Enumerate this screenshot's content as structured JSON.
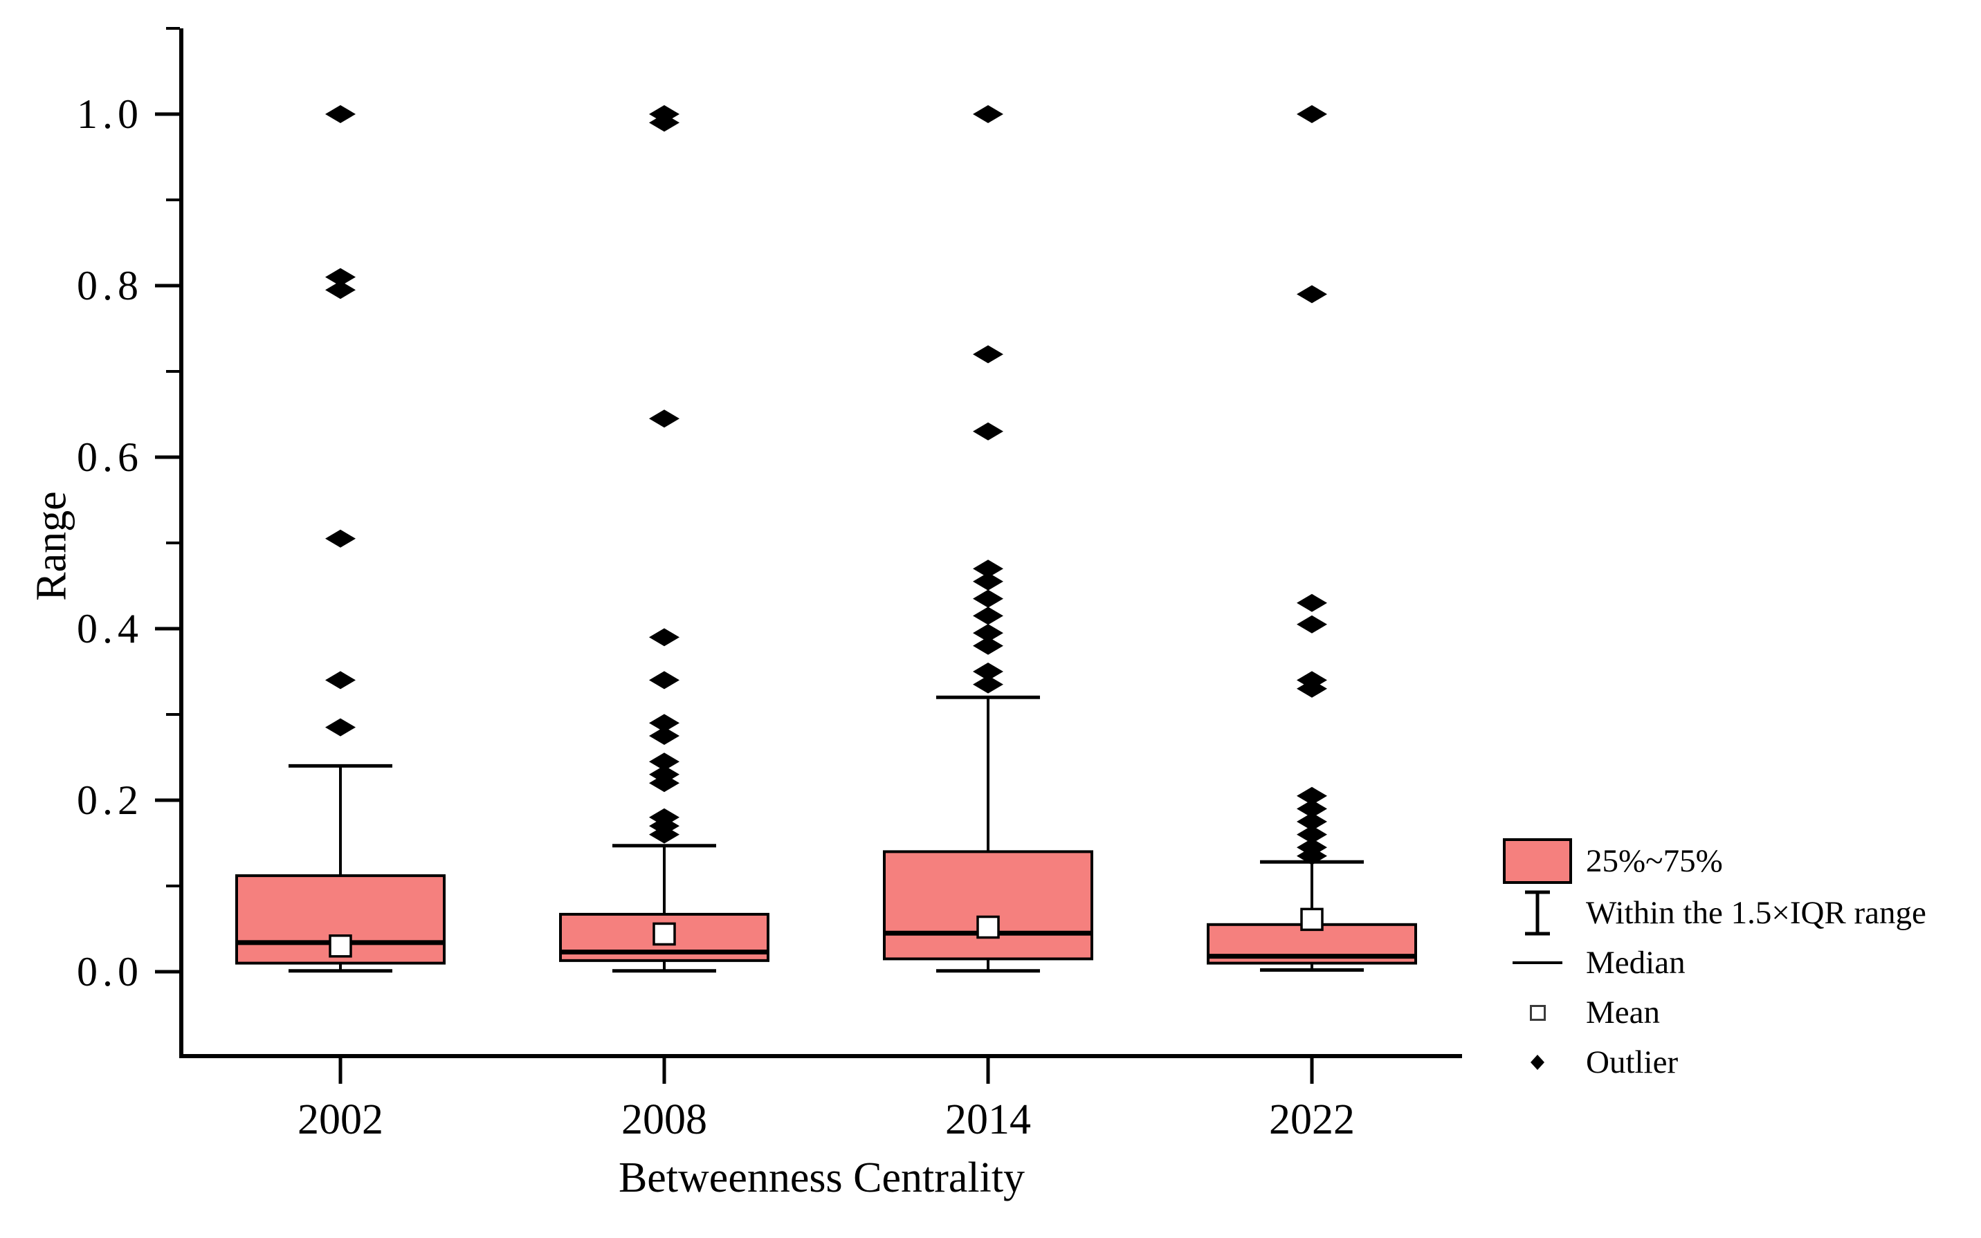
{
  "figure": {
    "background": "#ffffff",
    "ink_color": "#000000"
  },
  "chart_data": {
    "type": "box",
    "title": "",
    "xlabel": "Betweenness Centrality",
    "ylabel": "Range",
    "categories": [
      "2002",
      "2008",
      "2014",
      "2022"
    ],
    "ylim": [
      -0.098,
      1.1
    ],
    "yticks_major": [
      0.0,
      0.2,
      0.4,
      0.6,
      0.8,
      1.0
    ],
    "ytick_labels": [
      "0.0",
      "0.2",
      "0.4",
      "0.6",
      "0.8",
      "1.0"
    ],
    "yticks_minor": [
      0.1,
      0.3,
      0.5,
      0.7,
      0.9,
      1.1
    ],
    "grid": false,
    "legend_position": "right",
    "box_fill_color": "#F5807E",
    "series": [
      {
        "category": "2002",
        "q1": 0.01,
        "median": 0.034,
        "q3": 0.112,
        "whisker_low": 0.001,
        "whisker_high": 0.24,
        "mean": 0.03,
        "outliers": [
          0.285,
          0.34,
          0.505,
          0.795,
          0.81,
          1.0
        ]
      },
      {
        "category": "2008",
        "q1": 0.013,
        "median": 0.023,
        "q3": 0.067,
        "whisker_low": 0.001,
        "whisker_high": 0.147,
        "mean": 0.044,
        "outliers": [
          0.16,
          0.17,
          0.18,
          0.22,
          0.23,
          0.245,
          0.275,
          0.29,
          0.34,
          0.39,
          0.645,
          0.99,
          1.0
        ]
      },
      {
        "category": "2014",
        "q1": 0.015,
        "median": 0.045,
        "q3": 0.14,
        "whisker_low": 0.001,
        "whisker_high": 0.32,
        "mean": 0.052,
        "outliers": [
          0.335,
          0.35,
          0.38,
          0.395,
          0.415,
          0.435,
          0.455,
          0.47,
          0.63,
          0.72,
          1.0
        ]
      },
      {
        "category": "2022",
        "q1": 0.01,
        "median": 0.018,
        "q3": 0.055,
        "whisker_low": 0.002,
        "whisker_high": 0.128,
        "mean": 0.061,
        "outliers": [
          0.135,
          0.145,
          0.16,
          0.175,
          0.19,
          0.205,
          0.33,
          0.34,
          0.405,
          0.43,
          0.79,
          1.0
        ]
      }
    ]
  },
  "legend": {
    "items": [
      {
        "symbol": "box-swatch",
        "label": "25%~75%"
      },
      {
        "symbol": "iqr-whisker",
        "label": "Within the 1.5×IQR range"
      },
      {
        "symbol": "median-line",
        "label": "Median"
      },
      {
        "symbol": "mean-square",
        "label": "Mean"
      },
      {
        "symbol": "outlier-diamond",
        "label": "Outlier"
      }
    ]
  }
}
